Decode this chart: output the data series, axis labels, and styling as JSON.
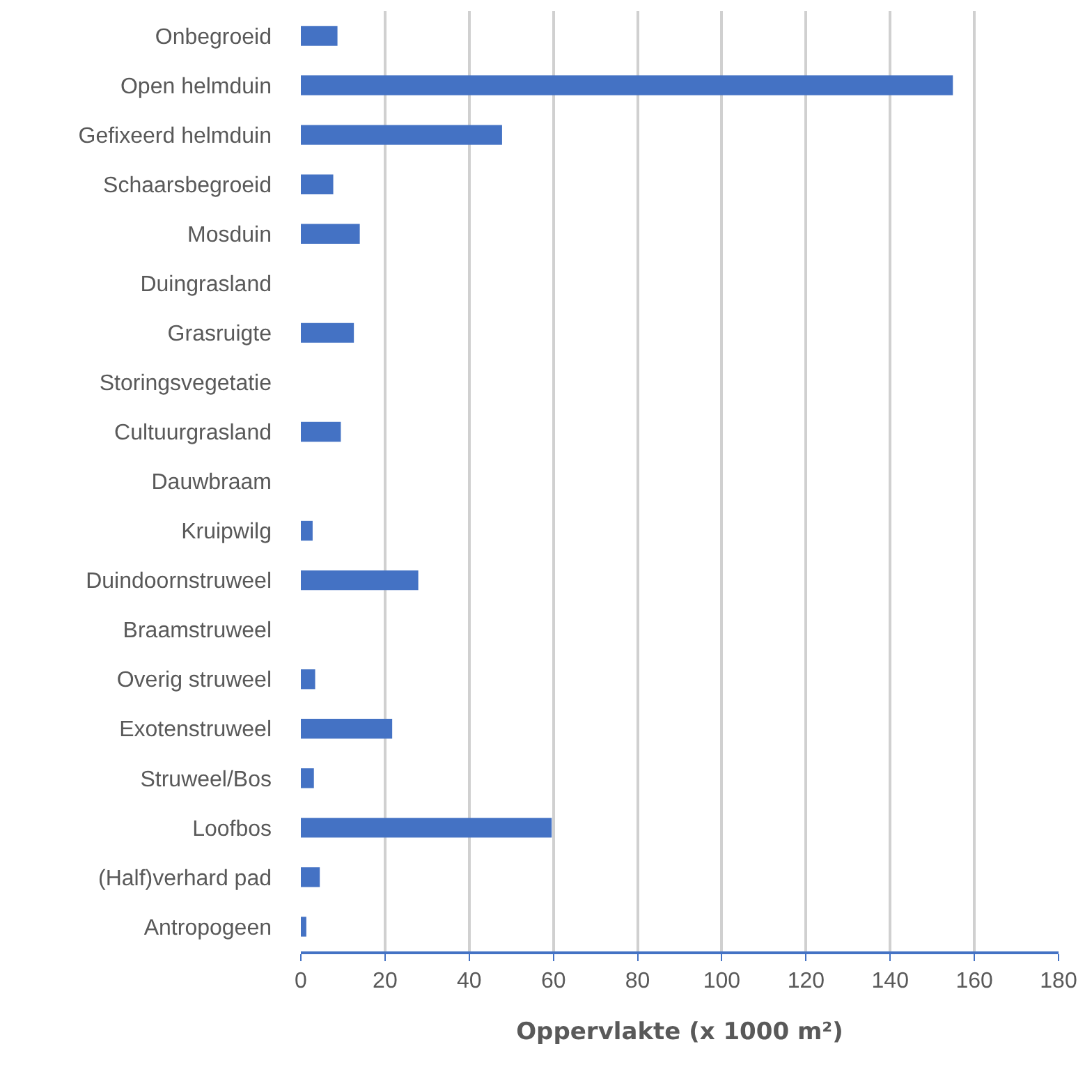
{
  "chart_data": {
    "type": "bar",
    "orientation": "horizontal",
    "xlabel": "Oppervlakte (x 1000 m²)",
    "categories": [
      "Onbegroeid",
      "Open helmduin",
      "Gefixeerd helmduin",
      "Schaarsbegroeid",
      "Mosduin",
      "Duingrasland",
      "Grasruigte",
      "Storingsvegetatie",
      "Cultuurgrasland",
      "Dauwbraam",
      "Kruipwilg",
      "Duindoornstruweel",
      "Braamstruweel",
      "Overig struweel",
      "Exotenstruweel",
      "Struweel/Bos",
      "Loofbos",
      "(Half)verhard pad",
      "Antropogeen"
    ],
    "values": [
      8.7,
      154.9,
      47.8,
      7.7,
      14,
      0,
      12.6,
      0,
      9.5,
      0,
      2.8,
      27.9,
      0,
      3.4,
      21.7,
      3.1,
      59.6,
      4.5,
      1.3
    ],
    "color": "#4472c4",
    "xlim": [
      0,
      180
    ],
    "xticks": [
      0,
      20,
      40,
      60,
      80,
      100,
      120,
      140,
      160,
      180
    ],
    "grid": "x"
  }
}
